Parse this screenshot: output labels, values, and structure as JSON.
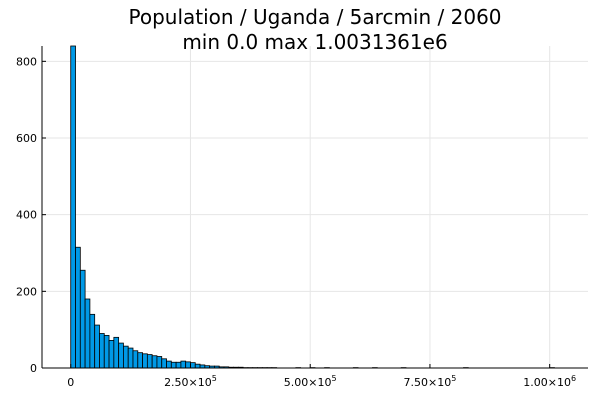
{
  "chart_data": {
    "type": "bar",
    "title": "Population / Uganda / 5arcmin / 2060",
    "subtitle": "min 0.0  max 1.0031361e6",
    "xlabel": "",
    "ylabel": "",
    "bin_width": 10000,
    "x_start": 0,
    "xlim": [
      -60000,
      1080000
    ],
    "ylim": [
      0,
      840
    ],
    "x_ticks": [
      {
        "value": 0,
        "mantissa": "0",
        "exp": ""
      },
      {
        "value": 250000,
        "mantissa": "2.50×10",
        "exp": "5"
      },
      {
        "value": 500000,
        "mantissa": "5.00×10",
        "exp": "5"
      },
      {
        "value": 750000,
        "mantissa": "7.50×10",
        "exp": "5"
      },
      {
        "value": 1000000,
        "mantissa": "1.00×10",
        "exp": "6"
      }
    ],
    "y_ticks": [
      0,
      200,
      400,
      600,
      800
    ],
    "grid": true,
    "legend": "none",
    "bar_color": "#0099e6",
    "counts": [
      842,
      315,
      255,
      180,
      140,
      112,
      90,
      85,
      72,
      80,
      65,
      57,
      52,
      45,
      40,
      37,
      35,
      32,
      30,
      24,
      18,
      15,
      15,
      18,
      16,
      14,
      10,
      8,
      6,
      5,
      5,
      3,
      3,
      2,
      2,
      2,
      1,
      1,
      1,
      1,
      1,
      1,
      1,
      0,
      0,
      0,
      0,
      1,
      0,
      0,
      1,
      0,
      0,
      1,
      0,
      0,
      0,
      0,
      0,
      1,
      0,
      0,
      0,
      1,
      0,
      0,
      0,
      0,
      0,
      1,
      0,
      0,
      0,
      0,
      0,
      0,
      0,
      0,
      0,
      0,
      0,
      0,
      1,
      0,
      0,
      0,
      0,
      0,
      0,
      0,
      0,
      0,
      0,
      0,
      0,
      0,
      0,
      0,
      0,
      0,
      1
    ]
  }
}
